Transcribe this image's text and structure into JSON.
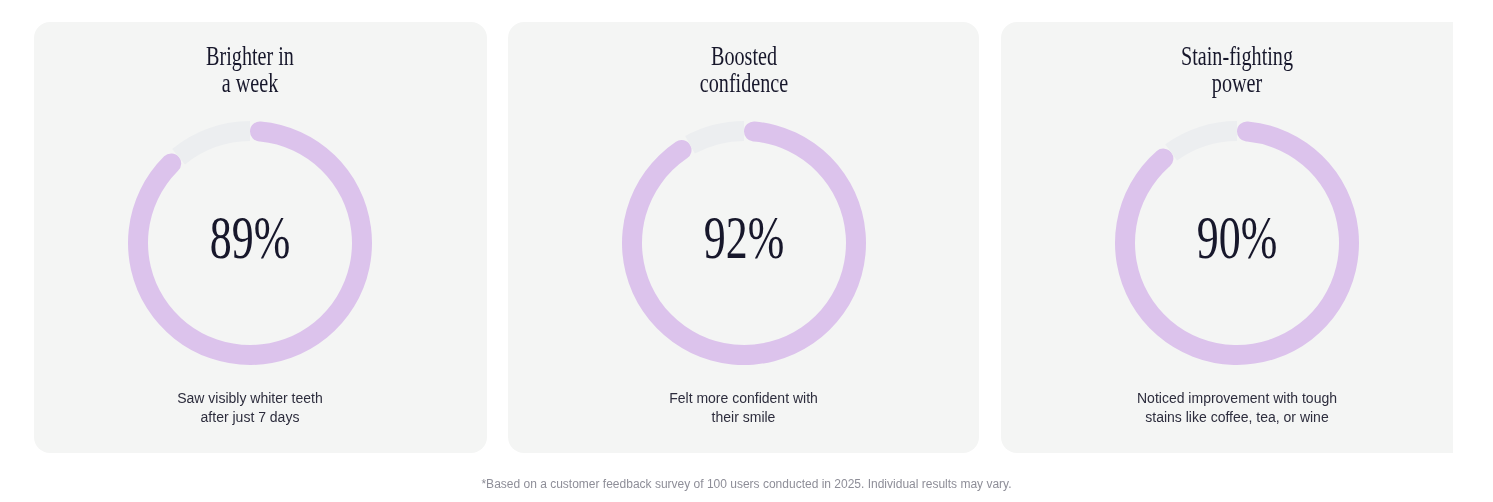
{
  "chart_data": [
    {
      "type": "donut",
      "title": "Brighter in\na week",
      "categories": [
        null,
        null
      ],
      "values": [
        89,
        11
      ],
      "colors": [
        "#dcc3ec",
        "#eceef0"
      ],
      "value_labels": [
        "89%",
        null
      ],
      "annotations": [
        "Saw visibly whiter teeth\nafter just 7 days"
      ]
    },
    {
      "type": "donut",
      "title": "Boosted\nconfidence",
      "categories": [
        null,
        null
      ],
      "values": [
        92,
        8
      ],
      "colors": [
        "#dcc3ec",
        "#eceef0"
      ],
      "value_labels": [
        "92%",
        null
      ],
      "annotations": [
        "Felt more confident with\ntheir smile",
        "*Based on a customer feedback survey of 100 users conducted in 2025. Individual results may vary."
      ]
    },
    {
      "type": "donut",
      "title": "Stain-fighting\npower",
      "categories": [
        null,
        null
      ],
      "values": [
        90,
        10
      ],
      "colors": [
        "#dcc3ec",
        "#eceef0"
      ],
      "value_labels": [
        "90%",
        null
      ],
      "annotations": [
        "Noticed improvement with tough\nstains like coffee, tea, or wine"
      ]
    }
  ]
}
